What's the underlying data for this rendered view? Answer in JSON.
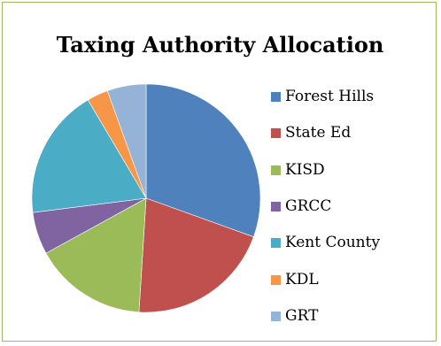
{
  "chart_data": {
    "type": "pie",
    "title": "Taxing Authority Allocation",
    "categories": [
      "Forest Hills",
      "State Ed",
      "KISD",
      "GRCC",
      "Kent County",
      "KDL",
      "GRT"
    ],
    "values": [
      30.5,
      20.5,
      16.0,
      6.0,
      18.5,
      3.0,
      5.5
    ],
    "unit": "percent",
    "colors": [
      "#4f81bd",
      "#c0504d",
      "#9bbb59",
      "#8064a2",
      "#4bacc6",
      "#f79646",
      "#95b3d7"
    ],
    "legend": "right"
  }
}
